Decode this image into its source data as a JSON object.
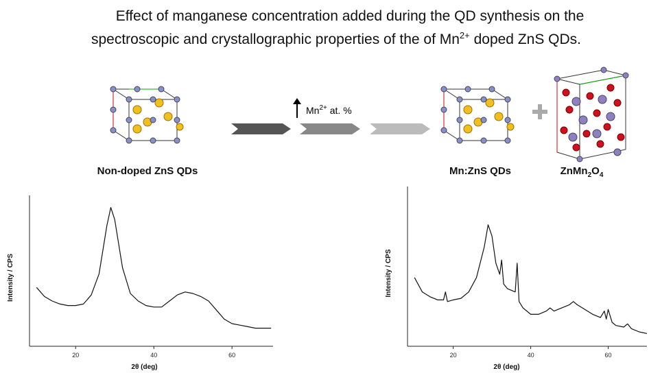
{
  "header": {
    "line1": "Effect of manganese concentration added during the QD synthesis on the",
    "line2": "spectroscopic and crystallographic properties of the of Mn",
    "line2_sup": "2+",
    "line2_end": " doped ZnS QDs."
  },
  "scheme": {
    "left_label": "Non-doped ZnS QDs",
    "arrow_text": "Mn",
    "arrow_sup": "2+",
    "arrow_end": " at. %",
    "right_label": "Mn:ZnS QDs",
    "product_base": "ZnMn",
    "product_sub1": "2",
    "product_o": "O",
    "product_sub2": "4"
  },
  "chart_data": [
    {
      "type": "line",
      "xlabel": "2θ (deg)",
      "ylabel": "Intensity / CPS",
      "xlim": [
        8.2,
        70.5
      ],
      "ylim": [
        0,
        100
      ],
      "xticks": [
        20,
        40,
        60
      ],
      "series": [
        {
          "color": "#111111",
          "x": [
            10,
            12,
            14,
            16,
            18,
            20,
            22,
            24,
            26,
            28,
            29,
            30,
            32,
            34,
            36,
            38,
            40,
            42,
            44,
            46,
            48,
            50,
            52,
            54,
            56,
            58,
            60,
            62,
            64,
            66,
            68,
            70
          ],
          "values": [
            39,
            33,
            30,
            28,
            27,
            27,
            28,
            34,
            48,
            80,
            92,
            84,
            52,
            35,
            30,
            27,
            26,
            26,
            30,
            34,
            36,
            35,
            33,
            30,
            24,
            18,
            15,
            14,
            13,
            12,
            12,
            12
          ]
        }
      ]
    },
    {
      "type": "line",
      "xlabel": "2θ (deg)",
      "ylabel": "Intensity / CPS",
      "xlim": [
        8.2,
        70
      ],
      "ylim": [
        0,
        100
      ],
      "xticks": [
        20,
        40,
        60
      ],
      "series": [
        {
          "color": "#111111",
          "x": [
            10,
            12,
            14,
            16,
            17.5,
            18,
            18.5,
            20,
            22,
            24,
            26,
            28,
            29,
            30,
            31,
            32,
            32.5,
            33,
            34,
            36,
            36.5,
            37,
            38,
            40,
            42,
            44,
            45,
            46,
            48,
            50,
            51,
            52,
            54,
            56,
            58,
            59,
            59.5,
            60,
            61,
            62,
            64,
            65,
            66,
            68,
            70
          ],
          "values": [
            43,
            34,
            31,
            29,
            29,
            34,
            28,
            29,
            30,
            34,
            43,
            62,
            76,
            69,
            52,
            45,
            54,
            39,
            36,
            34,
            52,
            28,
            24,
            20,
            20,
            22,
            24,
            22,
            24,
            26,
            28,
            26,
            23,
            20,
            18,
            22,
            17,
            23,
            15,
            13,
            12,
            14,
            11,
            9,
            8
          ]
        }
      ]
    }
  ]
}
